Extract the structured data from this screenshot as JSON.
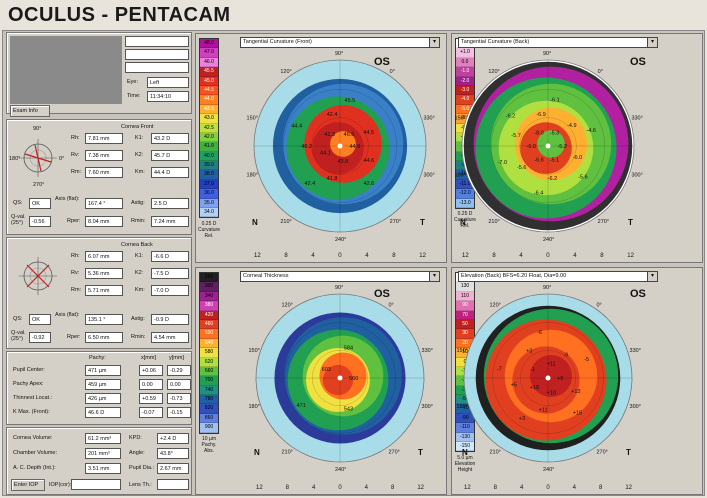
{
  "app": {
    "title": "OCULUS - PENTACAM"
  },
  "patient": {
    "eye_label": "Eye:",
    "eye": "Left",
    "time_label": "Time:",
    "time": "11:34:10",
    "exam_info": "Exam Info"
  },
  "front": {
    "header": "Cornea Front",
    "Rh_l": "Rh:",
    "Rh": "7.81 mm",
    "K1_l": "K1:",
    "K1": "43.2 D",
    "Rv_l": "Rv:",
    "Rv": "7.38 mm",
    "K2_l": "K2:",
    "K2": "45.7 D",
    "Rm_l": "Rm:",
    "Rm": "7.60 mm",
    "Km_l": "Km:",
    "Km": "44.4 D",
    "QS_l": "QS:",
    "QS": "OK",
    "Axis_l": "Axis (flat):",
    "Axis": "167.4 °",
    "Astig_l": "Astig:",
    "Astig": "2.5 D",
    "Qval_l": "Q-val. (25°)",
    "Qval": "-0.56",
    "Rper_l": "Rper:",
    "Rper": "8.04 mm",
    "Rmin_l": "Rmin:",
    "Rmin": "7.24 mm",
    "deg90": "90°",
    "deg270": "270°",
    "deg0": "0°",
    "deg180": "180°"
  },
  "back": {
    "header": "Cornea Back",
    "Rh_l": "Rh:",
    "Rh": "6.07 mm",
    "K1_l": "K1:",
    "K1": "-6.6 D",
    "Rv_l": "Rv:",
    "Rv": "5.36 mm",
    "K2_l": "K2:",
    "K2": "-7.5 D",
    "Rm_l": "Rm:",
    "Rm": "5.71 mm",
    "Km_l": "Km:",
    "Km": "-7.0 D",
    "QS_l": "QS:",
    "QS": "OK",
    "Axis_l": "Axis (flat):",
    "Axis": "135.1 °",
    "Astig_l": "Astig:",
    "Astig": "-0.9 D",
    "Qval_l": "Q-val. (25°)",
    "Qval": "-0.92",
    "Rper_l": "Rper:",
    "Rper": "6.50 mm",
    "Rmin_l": "Rmin:",
    "Rmin": "4.54 mm"
  },
  "pachy": {
    "col1": "Pachy:",
    "col2": "x[mm]",
    "col3": "y[mm]",
    "r1_l": "Pupil Center:",
    "r1": [
      "471 µm",
      "+0.06",
      "-0.29"
    ],
    "r2_l": "Pachy Apex:",
    "r2": [
      "459 µm",
      "0.00",
      "0.00"
    ],
    "r3_l": "Thinnest Locat.:",
    "r3": [
      "426 µm",
      "+0.59",
      "-0.73"
    ],
    "r4_l": "K Max. (Front):",
    "r4": [
      "46.6 D",
      "-0.07",
      "-0.15"
    ]
  },
  "misc": {
    "cv_l": "Cornea Volume:",
    "cv": "61.2 mm³",
    "kpd_l": "KPD:",
    "kpd": "+2.4 D",
    "chv_l": "Chamber Volume:",
    "chv": "201 mm³",
    "angle_l": "Angle:",
    "angle": "43.8°",
    "acd_l": "A. C. Depth (Int.):",
    "acd": "3.51 mm",
    "pupil_l": "Pupil Dia.:",
    "pupil": "2.67 mm",
    "enter_iop": "Enter IOP",
    "iop_l": "IOP(cor):",
    "lens_l": "Lens Th.:"
  },
  "maps": [
    {
      "select": "Tangential Curvature (Front)",
      "os": "OS",
      "scale": [
        "48.0",
        "47.0",
        "46.0",
        "45.5",
        "45.0",
        "44.5",
        "44.0",
        "43.5",
        "43.0",
        "42.5",
        "42.0",
        "41.0",
        "40.0",
        "39.0",
        "38.0",
        "37.0",
        "36.0",
        "35.0",
        "34.0"
      ],
      "scale_colors": [
        "#b0109a",
        "#d040c0",
        "#f080e0",
        "#c02020",
        "#e03020",
        "#ff5020",
        "#ff8020",
        "#ffb030",
        "#f0e040",
        "#c0e040",
        "#80d040",
        "#40b040",
        "#20a060",
        "#208080",
        "#2060a0",
        "#2040c0",
        "#4060e0",
        "#80a0f0",
        "#b0d0f8"
      ],
      "scale_foot": [
        "0.25 D",
        "Curvature",
        "Rel."
      ],
      "axis": [
        "12",
        "8",
        "4",
        "0",
        "4",
        "8",
        "12"
      ],
      "deg": [
        "90°",
        "120°",
        "150°",
        "180°",
        "210°",
        "240°",
        "270°",
        "300°",
        "330°",
        "0°"
      ],
      "N": "N",
      "T": "T",
      "vals": [
        "44.9",
        "44.6",
        "42.6",
        "43.8",
        "41.8",
        "42.4",
        "44.1",
        "46.2",
        "44.4",
        "41.3",
        "42.4",
        "45.5",
        "46.6",
        "44.5"
      ]
    },
    {
      "select": "Tangential Curvature (Back)",
      "os": "OS",
      "scale": [
        "+2.0",
        "+1.0",
        "0.0",
        "-1.0",
        "-2.0",
        "-3.0",
        "-4.0",
        "-5.0",
        "-6.0",
        "-6.5",
        "-7.0",
        "-7.5",
        "-8.0",
        "-9.0",
        "-10.0",
        "-11.0",
        "-12.0",
        "-13.0"
      ],
      "scale_colors": [
        "#ffffff",
        "#f0c0e0",
        "#e080c0",
        "#c040a0",
        "#a0208a",
        "#c02020",
        "#e04020",
        "#ff7020",
        "#ffa030",
        "#f0e040",
        "#b0e040",
        "#60c040",
        "#20a050",
        "#208080",
        "#2060a0",
        "#3050c0",
        "#5080e0",
        "#90c0f0"
      ],
      "scale_foot": [
        "0.25 D",
        "Curvature",
        "Rel."
      ],
      "axis": [
        "12",
        "8",
        "4",
        "0",
        "4",
        "8",
        "12"
      ],
      "deg": [
        "90°",
        "120°",
        "150°",
        "180°",
        "210°",
        "240°",
        "270°",
        "300°",
        "330°",
        "0°"
      ],
      "N": "N",
      "T": "T",
      "vals": [
        "-5.2",
        "-6.0",
        "-5.6",
        "-5.1",
        "-6.2",
        "-6.4",
        "-6.8",
        "-5.6",
        "-7.0",
        "-6.0",
        "-5.7",
        "-6.2",
        "-8.0",
        "-6.9",
        "-6.1",
        "-5.3",
        "-4.9",
        "-4.6"
      ]
    },
    {
      "select": "Corneal Thickness",
      "os": "OS",
      "scale": [
        "260",
        "300",
        "340",
        "380",
        "420",
        "460",
        "500",
        "540",
        "580",
        "620",
        "660",
        "700",
        "740",
        "780",
        "820",
        "860",
        "900"
      ],
      "scale_colors": [
        "#202020",
        "#602060",
        "#a02090",
        "#d040b0",
        "#c02020",
        "#e04020",
        "#ff7020",
        "#ffb030",
        "#f0e040",
        "#b0e040",
        "#60c040",
        "#20a050",
        "#209080",
        "#2060a0",
        "#3050c0",
        "#6080e0",
        "#a0c0f0"
      ],
      "scale_foot": [
        "10 µm",
        "Pachy.",
        "Abs."
      ],
      "axis": [
        "12",
        "8",
        "4",
        "0",
        "4",
        "8",
        "12"
      ],
      "deg": [
        "90°",
        "120°",
        "150°",
        "180°",
        "210°",
        "240°",
        "270°",
        "300°",
        "330°",
        "0°"
      ],
      "N": "N",
      "T": "T",
      "vals": [
        "560",
        "543",
        "471",
        "603",
        "584"
      ]
    },
    {
      "select": "Elevation (Back) BFS=6.20 Float, Dia=9.00",
      "os": "OS",
      "scale": [
        "150",
        "130",
        "110",
        "90",
        "70",
        "50",
        "30",
        "20",
        "10",
        "0",
        "-10",
        "-20",
        "-30",
        "-50",
        "-70",
        "-90",
        "-110",
        "-130",
        "-150"
      ],
      "scale_colors": [
        "#ffffff",
        "#e0e0e0",
        "#f0b0d0",
        "#e070b0",
        "#c02080",
        "#c02020",
        "#e04020",
        "#ff7020",
        "#ffb030",
        "#f0e040",
        "#b0e040",
        "#60c040",
        "#20a050",
        "#209080",
        "#2060a0",
        "#3050c0",
        "#6080e0",
        "#a0c0f0",
        "#d0e8f8"
      ],
      "scale_foot": [
        "5.0 µm",
        "Elevation",
        "Height"
      ],
      "axis": [
        "12",
        "8",
        "4",
        "0",
        "4",
        "8",
        "12"
      ],
      "deg": [
        "90°",
        "120°",
        "150°",
        "180°",
        "210°",
        "240°",
        "270°",
        "300°",
        "330°",
        "0°"
      ],
      "N": "N",
      "T": "T",
      "vals": [
        "+6",
        "+13",
        "+15",
        "+10",
        "+11",
        "+3",
        "+18",
        "+5",
        "-7",
        "-1",
        "+3",
        "-6",
        "+11",
        "-9",
        "-5"
      ]
    }
  ]
}
